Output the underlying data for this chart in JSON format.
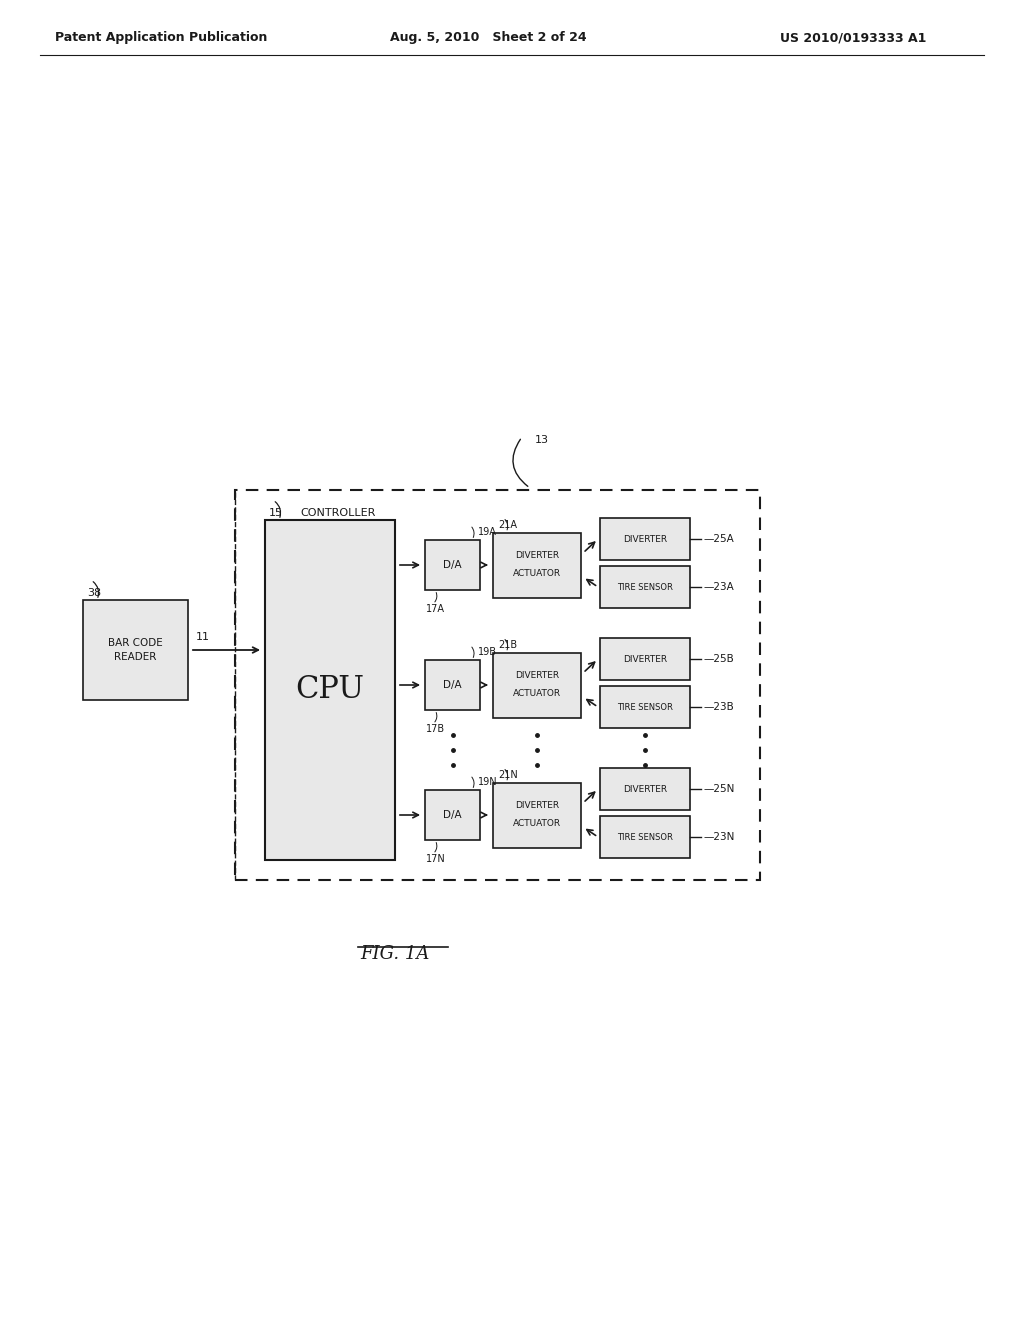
{
  "title_left": "Patent Application Publication",
  "title_center": "Aug. 5, 2010   Sheet 2 of 24",
  "title_right": "US 2010/0193333 A1",
  "fig_label": "FIG. 1A",
  "background_color": "#ffffff",
  "line_color": "#1a1a1a",
  "box_fill": "#e8e8e8",
  "diagram": {
    "controller_label": "CONTROLLER",
    "controller_ref": "13",
    "cpu_label": "CPU",
    "cpu_ref": "15",
    "barcode_label": "BAR CODE\nREADER",
    "barcode_ref": "38",
    "arrow_ref": "11",
    "rows": [
      {
        "da_ref": "19A",
        "da_port": "17A",
        "act_ref": "21A",
        "div_ref": "25A",
        "sens_ref": "23A"
      },
      {
        "da_ref": "19B",
        "da_port": "17B",
        "act_ref": "21B",
        "div_ref": "25B",
        "sens_ref": "23B"
      },
      {
        "da_ref": "19N",
        "da_port": "17N",
        "act_ref": "21N",
        "div_ref": "25N",
        "sens_ref": "23N"
      }
    ]
  }
}
